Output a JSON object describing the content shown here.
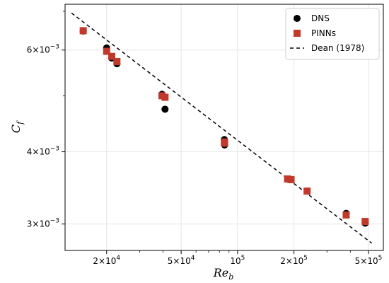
{
  "chart_data": {
    "type": "scatter",
    "title": "",
    "xlabel": {
      "main": "Re",
      "sub": "b"
    },
    "ylabel": {
      "main": "C",
      "sub": "f"
    },
    "xscale": "log",
    "yscale": "log",
    "xlim": [
      12000,
      600000
    ],
    "ylim": [
      0.0027,
      0.0072
    ],
    "grid": true,
    "legend_position": "top-right",
    "x_ticks": [
      {
        "value": 20000,
        "mant": "2×10",
        "exp": "4"
      },
      {
        "value": 50000,
        "mant": "5×10",
        "exp": "4"
      },
      {
        "value": 100000,
        "mant": "10",
        "exp": "5"
      },
      {
        "value": 200000,
        "mant": "2×10",
        "exp": "5"
      },
      {
        "value": 500000,
        "mant": "5×10",
        "exp": "5"
      }
    ],
    "y_ticks": [
      {
        "value": 0.003,
        "mant": "3×10",
        "exp": "−3"
      },
      {
        "value": 0.004,
        "mant": "4×10",
        "exp": "−3"
      },
      {
        "value": 0.006,
        "mant": "6×10",
        "exp": "−3"
      }
    ],
    "series": [
      {
        "name": "DNS",
        "marker": "circle",
        "color": "#000000",
        "points": [
          {
            "x": 15000,
            "y": 0.00647
          },
          {
            "x": 20000,
            "y": 0.00605
          },
          {
            "x": 21300,
            "y": 0.00581
          },
          {
            "x": 22700,
            "y": 0.00568
          },
          {
            "x": 39500,
            "y": 0.00503
          },
          {
            "x": 41000,
            "y": 0.00474
          },
          {
            "x": 85000,
            "y": 0.0042
          },
          {
            "x": 85300,
            "y": 0.00411
          },
          {
            "x": 380000,
            "y": 0.00313
          },
          {
            "x": 480000,
            "y": 0.00301
          }
        ]
      },
      {
        "name": "PINNs",
        "marker": "square",
        "color": "#c0392b",
        "points": [
          {
            "x": 15000,
            "y": 0.00648
          },
          {
            "x": 20000,
            "y": 0.00597
          },
          {
            "x": 21300,
            "y": 0.00585
          },
          {
            "x": 22700,
            "y": 0.00573
          },
          {
            "x": 39500,
            "y": 0.005
          },
          {
            "x": 41000,
            "y": 0.00497
          },
          {
            "x": 85000,
            "y": 0.00416
          },
          {
            "x": 85300,
            "y": 0.00414
          },
          {
            "x": 185000,
            "y": 0.00359
          },
          {
            "x": 193000,
            "y": 0.00358
          },
          {
            "x": 235000,
            "y": 0.00342
          },
          {
            "x": 380000,
            "y": 0.00311
          },
          {
            "x": 480000,
            "y": 0.00303
          }
        ]
      },
      {
        "name": "Dean (1978)",
        "type": "line",
        "style": "dashed",
        "color": "#000000",
        "points": [
          {
            "x": 13000,
            "y": 0.00695
          },
          {
            "x": 520000,
            "y": 0.00278
          }
        ]
      }
    ]
  }
}
